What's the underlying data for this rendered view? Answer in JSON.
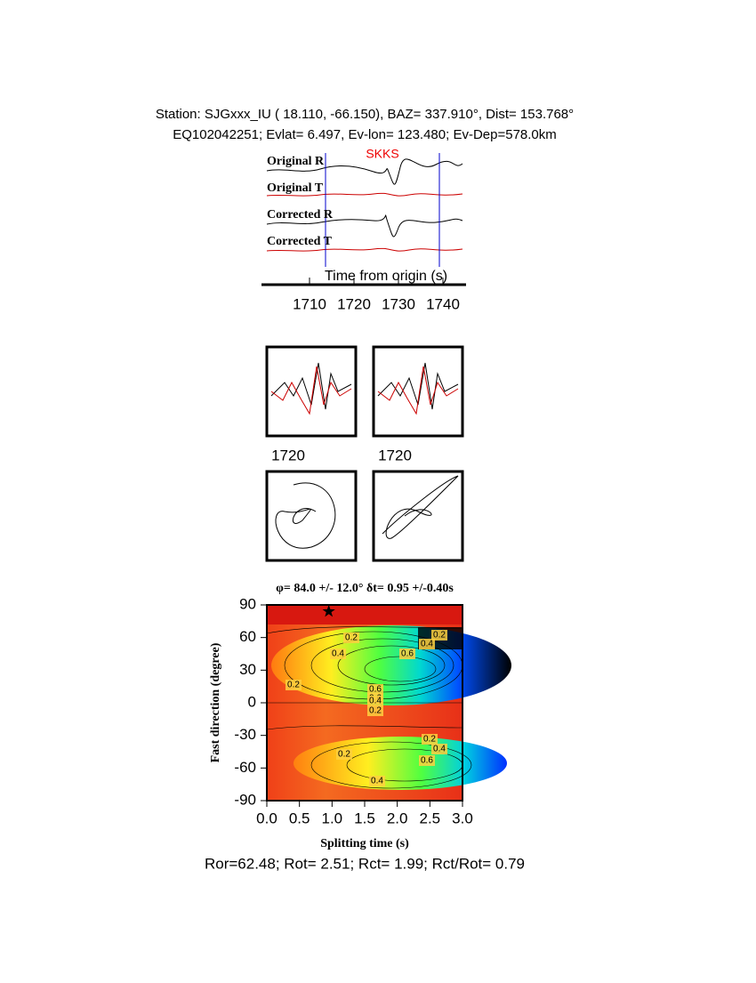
{
  "header": {
    "station_line": "Station: SJGxxx_IU (  18.110,  -66.150), BAZ=  337.910°, Dist=  153.768°",
    "event_line": "EQ102042251; Evlat=   6.497, Ev-lon= 123.480; Ev-Dep=578.0km"
  },
  "waveforms": {
    "phase": "SKKS",
    "traces": [
      "Original R",
      "Original T",
      "Corrected R",
      "Corrected T"
    ],
    "xlabel": "Time from origin (s)",
    "xlim": [
      1700,
      1745
    ],
    "xticks": [
      1710,
      1720,
      1730,
      1740
    ]
  },
  "windows": {
    "labels": [
      "1720",
      "1720"
    ]
  },
  "contour": {
    "title": "φ= 84.0 +/- 12.0° δt= 0.95 +/-0.40s",
    "xlabel": "Splitting time (s)",
    "ylabel": "Fast direction (degree)",
    "xlim": [
      0,
      3
    ],
    "ylim": [
      -90,
      90
    ],
    "xticks": [
      {
        "value": 0,
        "label": "0.0"
      },
      0.5,
      {
        "value": 1,
        "label": "1.0"
      },
      1.5,
      {
        "value": 2,
        "label": "2.0"
      },
      2.5,
      {
        "value": 3,
        "label": "3.0"
      }
    ],
    "yticks": [
      -90,
      -60,
      -30,
      0,
      30,
      60,
      90
    ],
    "best": {
      "dt": 0.95,
      "phi": 84
    },
    "contour_labels": [
      "0.2",
      "0.4",
      "0.2",
      "0.4",
      "0.6",
      "0.6",
      "0.6",
      "0.4",
      "0.2",
      "0.2",
      "0.2",
      "0.4",
      "0.6",
      "0.2",
      "0.4"
    ]
  },
  "footer": "Ror=62.48; Rot= 2.51; Rct= 1.99; Rct/Rot= 0.79"
}
